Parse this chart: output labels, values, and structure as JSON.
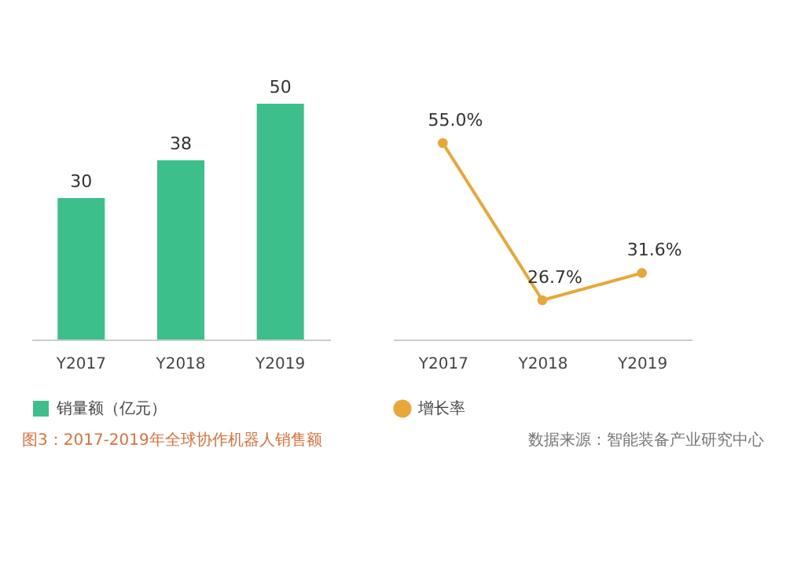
{
  "chart_data": [
    {
      "type": "bar",
      "categories": [
        "Y2017",
        "Y2018",
        "Y2019"
      ],
      "series": [
        {
          "name": "销量额（亿元）",
          "color": "#3dbf8c",
          "values": [
            30,
            38,
            50
          ]
        }
      ],
      "data_labels": true,
      "legend": "bottom",
      "annotations": [
        "图3：2017-2019年全球协作机器人销售额"
      ]
    },
    {
      "type": "line",
      "categories": [
        "Y2017",
        "Y2018",
        "Y2019"
      ],
      "series": [
        {
          "name": "增长率",
          "color": "#e8a838",
          "values": [
            55.0,
            26.7,
            31.6
          ],
          "value_labels": [
            "55.0%",
            "26.7%",
            "31.6%"
          ]
        }
      ],
      "marker": "circle",
      "legend": "bottom",
      "annotations": [
        "数据来源：智能装备产业研究中心"
      ]
    }
  ]
}
